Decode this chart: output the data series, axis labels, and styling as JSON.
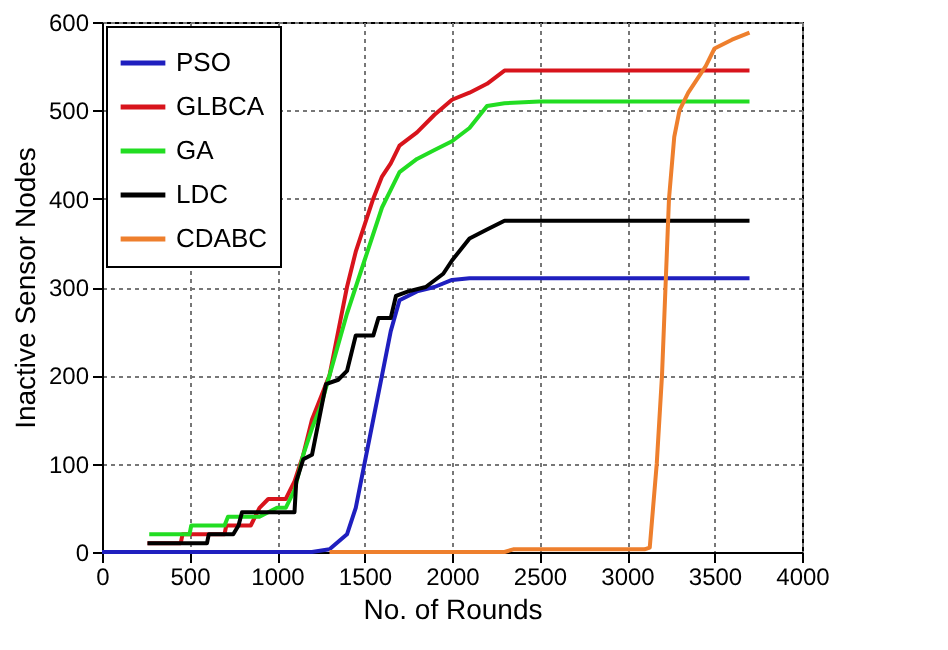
{
  "chart_data": {
    "type": "line",
    "xlabel": "No. of Rounds",
    "ylabel": "Inactive Sensor Nodes",
    "xlim": [
      0,
      4000
    ],
    "ylim": [
      0,
      600
    ],
    "xticks": [
      0,
      500,
      1000,
      1500,
      2000,
      2500,
      3000,
      3500,
      4000
    ],
    "yticks": [
      0,
      100,
      200,
      300,
      400,
      500,
      600
    ],
    "grid": true,
    "legend": "top left",
    "marker": "none",
    "line_style": "solid",
    "series": [
      {
        "name": "PSO",
        "color": "#1f1fbf",
        "x": [
          0,
          1200,
          1300,
          1400,
          1450,
          1500,
          1550,
          1600,
          1650,
          1700,
          1800,
          1900,
          2000,
          2100,
          3700
        ],
        "values": [
          0,
          0,
          3,
          20,
          50,
          100,
          150,
          200,
          250,
          285,
          295,
          300,
          308,
          310,
          310
        ]
      },
      {
        "name": "GLBCA",
        "color": "#d8141c",
        "x": [
          260,
          450,
          460,
          700,
          710,
          850,
          900,
          950,
          1050,
          1100,
          1150,
          1200,
          1250,
          1300,
          1350,
          1400,
          1450,
          1500,
          1550,
          1600,
          1650,
          1700,
          1800,
          1900,
          2000,
          2100,
          2200,
          2300,
          3700
        ],
        "values": [
          10,
          10,
          20,
          20,
          30,
          30,
          50,
          60,
          60,
          80,
          110,
          150,
          175,
          200,
          250,
          300,
          340,
          370,
          400,
          425,
          440,
          460,
          475,
          495,
          512,
          520,
          530,
          545,
          545
        ]
      },
      {
        "name": "GA",
        "color": "#22dd22",
        "x": [
          270,
          500,
          510,
          700,
          720,
          900,
          1000,
          1050,
          1100,
          1150,
          1200,
          1250,
          1300,
          1350,
          1400,
          1450,
          1500,
          1550,
          1600,
          1650,
          1700,
          1800,
          1900,
          2000,
          2100,
          2200,
          2300,
          2500,
          3700
        ],
        "values": [
          20,
          20,
          30,
          30,
          40,
          40,
          50,
          50,
          70,
          110,
          140,
          165,
          200,
          235,
          270,
          300,
          330,
          360,
          390,
          410,
          430,
          445,
          455,
          465,
          480,
          505,
          508,
          510,
          510
        ]
      },
      {
        "name": "LDC",
        "color": "#000000",
        "x": [
          260,
          600,
          610,
          750,
          780,
          800,
          1100,
          1110,
          1150,
          1200,
          1230,
          1260,
          1280,
          1350,
          1400,
          1450,
          1550,
          1580,
          1650,
          1680,
          1750,
          1850,
          1950,
          2000,
          2100,
          2200,
          2300,
          3700
        ],
        "values": [
          10,
          10,
          20,
          20,
          30,
          45,
          45,
          80,
          105,
          110,
          140,
          170,
          190,
          195,
          205,
          245,
          245,
          265,
          265,
          290,
          295,
          300,
          315,
          330,
          355,
          365,
          375,
          375
        ]
      },
      {
        "name": "CDABC",
        "color": "#ee7f2d",
        "x": [
          1300,
          2300,
          2350,
          3100,
          3130,
          3170,
          3200,
          3220,
          3240,
          3270,
          3300,
          3350,
          3400,
          3450,
          3500,
          3600,
          3700
        ],
        "values": [
          0,
          0,
          3,
          3,
          5,
          100,
          200,
          300,
          400,
          470,
          500,
          520,
          535,
          550,
          570,
          580,
          588
        ]
      }
    ]
  }
}
